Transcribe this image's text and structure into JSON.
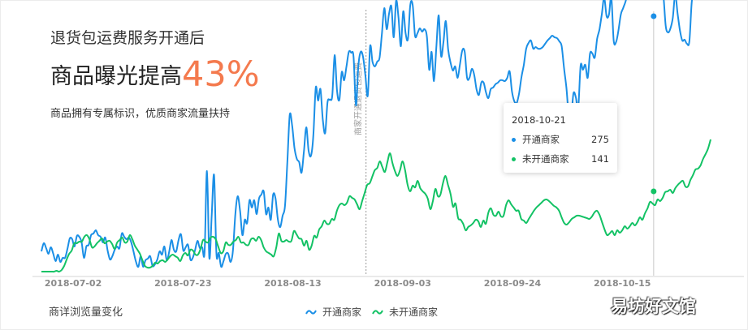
{
  "headline": {
    "top": "退货包运费服务开通后",
    "main": "商品曝光提高",
    "percent": "43%",
    "sub": "商品拥有专属标识，优质商家流量扶持"
  },
  "footer": {
    "title": "商详浏览量变化"
  },
  "watermark": "易坊好文馆",
  "tooltip": {
    "date": "2018-10-21",
    "rows": [
      {
        "name": "开通商家",
        "value": "275"
      },
      {
        "name": "未开通商家",
        "value": "141"
      }
    ]
  },
  "chart_data": {
    "type": "line",
    "x_ticks": [
      "2018-07-02",
      "2018-07-23",
      "2018-08-13",
      "2018-09-03",
      "2018-09-24",
      "2018-10-15"
    ],
    "x_range": [
      "2018-06-25",
      "2018-11-04"
    ],
    "annotation": {
      "date": "2018-08-27",
      "label": "商家开通退货包运费"
    },
    "highlight_date": "2018-10-21",
    "grid": false,
    "legend": "bottom-center",
    "colors": {
      "opened": "#1b8fe6",
      "not_opened": "#13c265"
    },
    "series": [
      {
        "name": "开通商家",
        "values": [
          30,
          40,
          34,
          27,
          35,
          27,
          18,
          26,
          17,
          22,
          22,
          33,
          46,
          45,
          36,
          49,
          48,
          41,
          22,
          36,
          38,
          50,
          52,
          56,
          50,
          48,
          41,
          47,
          31,
          20,
          24,
          32,
          36,
          34,
          52,
          48,
          45,
          47,
          41,
          29,
          17,
          11,
          24,
          11,
          19,
          21,
          24,
          12,
          14,
          20,
          30,
          26,
          36,
          19,
          29,
          44,
          32,
          30,
          44,
          51,
          31,
          35,
          38,
          20,
          22,
          32,
          43,
          34,
          35,
          29,
          129,
          22,
          73,
          124,
          27,
          28,
          11,
          18,
          27,
          27,
          17,
          31,
          76,
          98,
          80,
          50,
          69,
          65,
          93,
          84,
          93,
          76,
          95,
          100,
          104,
          76,
          84,
          69,
          100,
          95,
          69,
          60,
          74,
          86,
          140,
          198,
          186,
          158,
          144,
          140,
          127,
          153,
          183,
          154,
          148,
          173,
          232,
          216,
          230,
          192,
          176,
          214,
          217,
          222,
          272,
          228,
          217,
          251,
          241,
          258,
          276,
          275,
          270,
          210,
          258,
          276,
          270,
          247,
          222,
          283,
          264,
          258,
          264,
          269,
          299,
          330,
          304,
          323,
          332,
          294,
          339,
          318,
          283,
          326,
          299,
          292,
          334,
          334,
          296,
          299,
          305,
          301,
          304,
          295,
          254,
          276,
          240,
          281,
          321,
          271,
          288,
          314,
          279,
          263,
          253,
          258,
          244,
          261,
          278,
          276,
          244,
          244,
          255,
          248,
          230,
          223,
          238,
          238,
          226,
          219,
          230,
          232,
          236,
          238,
          241,
          241,
          240,
          244,
          252,
          227,
          215,
          213,
          225,
          245,
          260,
          280,
          287,
          290,
          280,
          282,
          280,
          280,
          282,
          286,
          290,
          293,
          296,
          294,
          293,
          289,
          283,
          256,
          232,
          198,
          196,
          225,
          220,
          206,
          259,
          254,
          260,
          244,
          274,
          274,
          269,
          292,
          304,
          323,
          343,
          320,
          322,
          343,
          290,
          288,
          302,
          322,
          330,
          338,
          350,
          357,
          373,
          380,
          380,
          379,
          420,
          450,
          414,
          403,
          400,
          401,
          375,
          356,
          342,
          345,
          308,
          300,
          305,
          318,
          347,
          324,
          303,
          290,
          291,
          286,
          289,
          337,
          356,
          385,
          370,
          354,
          344,
          356,
          352,
          352
        ]
      },
      {
        "name": "未开通商家",
        "values": [
          5,
          5,
          5,
          5,
          5,
          5,
          6,
          5,
          7,
          12,
          20,
          27,
          31,
          40,
          40,
          42,
          42,
          48,
          50,
          45,
          35,
          36,
          40,
          43,
          46,
          40,
          42,
          43,
          39,
          33,
          41,
          44,
          47,
          41,
          42,
          50,
          45,
          37,
          32,
          27,
          19,
          12,
          10,
          10,
          12,
          16,
          15,
          18,
          19,
          17,
          20,
          24,
          26,
          24,
          22,
          18,
          25,
          28,
          25,
          32,
          31,
          26,
          26,
          33,
          44,
          42,
          41,
          47,
          48,
          45,
          36,
          28,
          30,
          41,
          38,
          38,
          42,
          44,
          48,
          41,
          41,
          38,
          38,
          45,
          46,
          43,
          48,
          44,
          35,
          30,
          28,
          26,
          24,
          35,
          52,
          43,
          42,
          44,
          42,
          43,
          55,
          51,
          46,
          45,
          37,
          43,
          32,
          37,
          49,
          47,
          57,
          61,
          68,
          64,
          64,
          70,
          69,
          80,
          87,
          89,
          87,
          90,
          98,
          96,
          94,
          88,
          82,
          92,
          102,
          112,
          114,
          122,
          130,
          133,
          141,
          134,
          128,
          140,
          151,
          139,
          129,
          123,
          130,
          141,
          130,
          112,
          104,
          111,
          109,
          117,
          108,
          104,
          101,
          95,
          82,
          92,
          107,
          98,
          100,
          114,
          123,
          112,
          101,
          85,
          89,
          71,
          69,
          64,
          56,
          60,
          62,
          65,
          69,
          67,
          60,
          68,
          64,
          78,
          83,
          75,
          74,
          79,
          73,
          74,
          87,
          93,
          88,
          84,
          80,
          80,
          70,
          68,
          65,
          70,
          75,
          80,
          84,
          87,
          90,
          93,
          94,
          92,
          89,
          86,
          84,
          80,
          72,
          65,
          63,
          66,
          70,
          72,
          74,
          74,
          73,
          72,
          71,
          70,
          73,
          78,
          80,
          75,
          66,
          57,
          50,
          52,
          55,
          50,
          56,
          53,
          56,
          61,
          58,
          61,
          65,
          62,
          66,
          72,
          69,
          77,
          83,
          91,
          89,
          87,
          94,
          92,
          96,
          103,
          104,
          106,
          102,
          108,
          112,
          115,
          117,
          110,
          110,
          118,
          124,
          131,
          132,
          136,
          144,
          150,
          157,
          168
        ]
      }
    ]
  }
}
